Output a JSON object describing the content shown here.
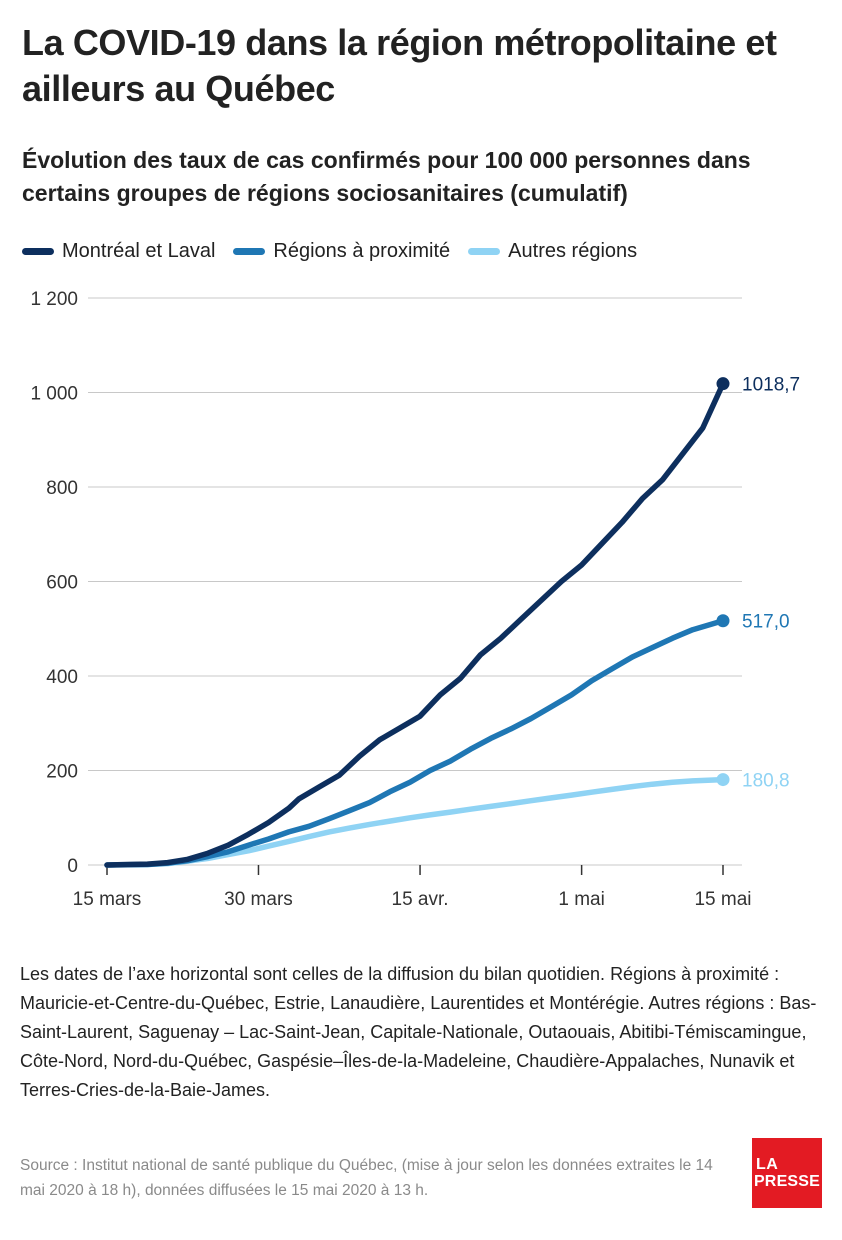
{
  "title": "La COVID-19 dans la région métropolitaine et ailleurs au Québec",
  "subtitle": "Évolution des taux de cas confirmés pour 100 000 personnes dans certains groupes de régions sociosanitaires (cumulatif)",
  "colors": {
    "montreal_laval": "#0d2f5e",
    "regions_proximite": "#1f77b4",
    "autres_regions": "#8fd3f4",
    "grid": "#c8c8c8",
    "logo": "#e31b23"
  },
  "chart_data": {
    "type": "line",
    "x_labels": [
      "15 mars",
      "30 mars",
      "15 avr.",
      "1 mai",
      "15 mai"
    ],
    "y_ticks": [
      0,
      200,
      400,
      600,
      800,
      1000,
      1200
    ],
    "y_tick_labels": [
      "0",
      "200",
      "400",
      "600",
      "800",
      "1 000",
      "1 200"
    ],
    "ylim": [
      0,
      1200
    ],
    "x_range_days": [
      0,
      61
    ],
    "grid": "horizontal",
    "legend_position": "top-left",
    "series": [
      {
        "name": "Montréal et Laval",
        "color_key": "montreal_laval",
        "end_label": "1018,7",
        "points": [
          [
            0,
            0
          ],
          [
            2,
            1
          ],
          [
            4,
            2
          ],
          [
            6,
            5
          ],
          [
            8,
            12
          ],
          [
            10,
            25
          ],
          [
            12,
            42
          ],
          [
            14,
            65
          ],
          [
            16,
            90
          ],
          [
            18,
            120
          ],
          [
            19,
            140
          ],
          [
            21,
            165
          ],
          [
            23,
            190
          ],
          [
            25,
            230
          ],
          [
            27,
            265
          ],
          [
            29,
            290
          ],
          [
            31,
            315
          ],
          [
            33,
            360
          ],
          [
            35,
            395
          ],
          [
            37,
            445
          ],
          [
            39,
            480
          ],
          [
            41,
            520
          ],
          [
            43,
            560
          ],
          [
            45,
            600
          ],
          [
            47,
            635
          ],
          [
            49,
            680
          ],
          [
            51,
            725
          ],
          [
            53,
            775
          ],
          [
            55,
            815
          ],
          [
            57,
            870
          ],
          [
            59,
            925
          ],
          [
            61,
            1018.7
          ]
        ]
      },
      {
        "name": "Régions à proximité",
        "color_key": "regions_proximite",
        "end_label": "517,0",
        "points": [
          [
            0,
            0
          ],
          [
            4,
            1
          ],
          [
            6,
            4
          ],
          [
            8,
            9
          ],
          [
            10,
            18
          ],
          [
            12,
            28
          ],
          [
            14,
            42
          ],
          [
            16,
            55
          ],
          [
            18,
            70
          ],
          [
            20,
            82
          ],
          [
            22,
            98
          ],
          [
            24,
            115
          ],
          [
            26,
            132
          ],
          [
            28,
            155
          ],
          [
            30,
            175
          ],
          [
            32,
            200
          ],
          [
            34,
            220
          ],
          [
            36,
            245
          ],
          [
            38,
            268
          ],
          [
            40,
            288
          ],
          [
            42,
            310
          ],
          [
            44,
            335
          ],
          [
            46,
            360
          ],
          [
            48,
            390
          ],
          [
            50,
            415
          ],
          [
            52,
            440
          ],
          [
            54,
            460
          ],
          [
            56,
            480
          ],
          [
            58,
            498
          ],
          [
            61,
            517
          ]
        ]
      },
      {
        "name": "Autres régions",
        "color_key": "autres_regions",
        "end_label": "180,8",
        "points": [
          [
            0,
            0
          ],
          [
            4,
            1
          ],
          [
            6,
            3
          ],
          [
            8,
            8
          ],
          [
            10,
            14
          ],
          [
            12,
            22
          ],
          [
            14,
            30
          ],
          [
            16,
            40
          ],
          [
            18,
            50
          ],
          [
            20,
            60
          ],
          [
            22,
            70
          ],
          [
            24,
            78
          ],
          [
            26,
            86
          ],
          [
            28,
            93
          ],
          [
            30,
            100
          ],
          [
            32,
            106
          ],
          [
            34,
            112
          ],
          [
            36,
            118
          ],
          [
            38,
            124
          ],
          [
            40,
            130
          ],
          [
            42,
            136
          ],
          [
            44,
            142
          ],
          [
            46,
            148
          ],
          [
            48,
            154
          ],
          [
            50,
            160
          ],
          [
            52,
            166
          ],
          [
            54,
            171
          ],
          [
            56,
            175
          ],
          [
            58,
            178
          ],
          [
            61,
            180.8
          ]
        ]
      }
    ]
  },
  "note": "Les dates de l’axe horizontal sont celles de la diffusion du bilan quotidien. Régions à proximité : Mauricie-et-Centre-du-Québec, Estrie, Lanaudière, Laurentides et Montérégie. Autres régions : Bas-Saint-Laurent, Saguenay – Lac-Saint-Jean, Capitale-Nationale, Outaouais, Abitibi-Témiscamingue, Côte-Nord, Nord-du-Québec, Gaspésie–Îles-de-la-Madeleine, Chaudière-Appalaches, Nunavik et Terres-Cries-de-la-Baie-James.",
  "source": "Source : Institut national de santé publique du Québec, (mise à jour selon les données extraites le 14 mai 2020 à 18 h), données diffusées le 15 mai 2020 à 13 h.",
  "logo": {
    "line1": "LA",
    "line2": "PRESSE"
  }
}
